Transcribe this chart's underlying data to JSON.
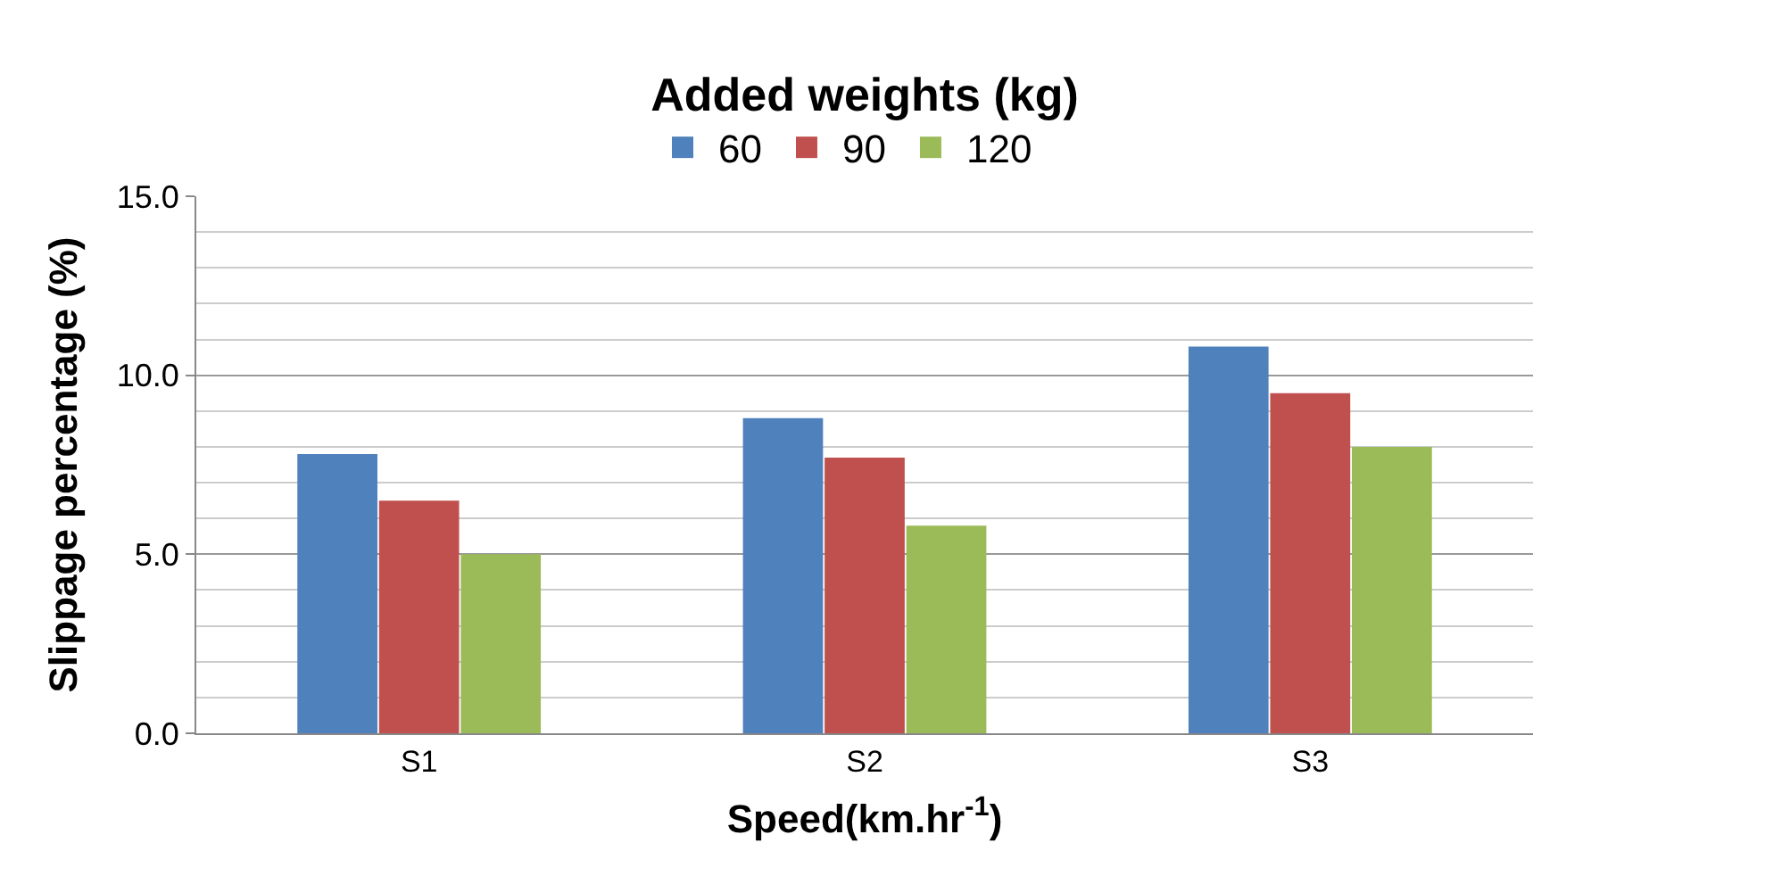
{
  "chart_data": {
    "type": "bar",
    "legend_title": "Added weights (kg)",
    "xlabel": "Speed(km.hr$^{-1}$)",
    "ylabel": "Slippage percentage (%)",
    "categories": [
      "S1",
      "S2",
      "S3"
    ],
    "series": [
      {
        "name": "60",
        "color": "#4f81bd",
        "values": [
          7.8,
          8.8,
          10.8
        ]
      },
      {
        "name": "90",
        "color": "#c0504d",
        "values": [
          6.5,
          7.7,
          9.5
        ]
      },
      {
        "name": "120",
        "color": "#9bbb59",
        "values": [
          5.0,
          5.8,
          8.0
        ]
      }
    ],
    "ylim": [
      0,
      15
    ],
    "yticks": [
      {
        "value": 0,
        "label": "0.0"
      },
      {
        "value": 5,
        "label": "5.0"
      },
      {
        "value": 10,
        "label": "10.0"
      },
      {
        "value": 15,
        "label": "15.0"
      }
    ],
    "grid": true,
    "legend": "top"
  }
}
